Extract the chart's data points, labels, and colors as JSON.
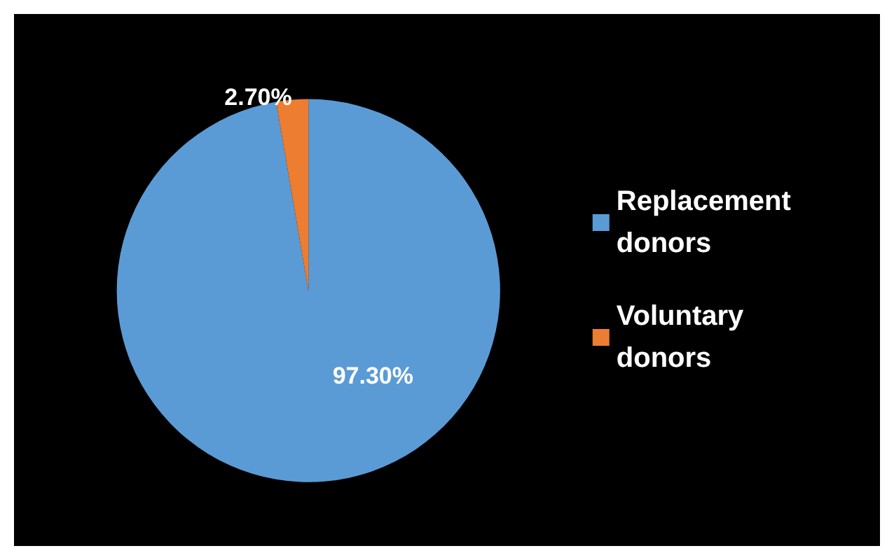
{
  "chart_data": {
    "type": "pie",
    "categories": [
      "Replacement donors",
      "Voluntary donors"
    ],
    "values": [
      97.3,
      2.7
    ],
    "colors": [
      "#5b9bd5",
      "#ed7d31"
    ],
    "value_labels": [
      "97.30%",
      "2.70%"
    ],
    "legend": "right"
  }
}
